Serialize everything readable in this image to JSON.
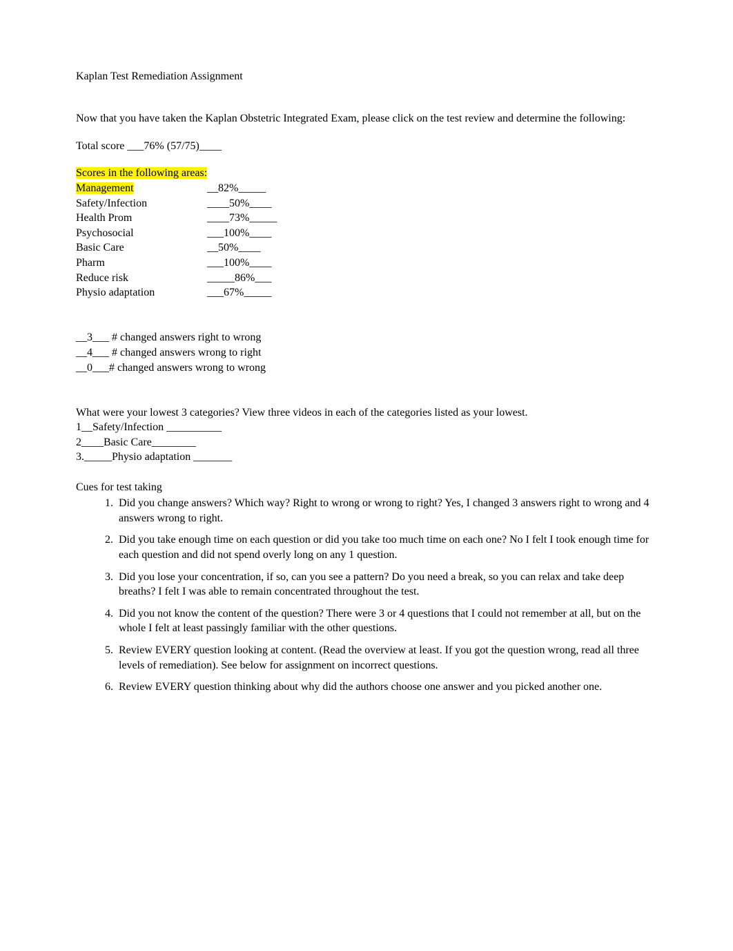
{
  "title": "Kaplan Test Remediation Assignment",
  "intro": "Now that you have taken the Kaplan Obstetric Integrated Exam, please click on the test review and determine the following:",
  "total_score_label": "Total score ___76% (57/75)____",
  "scores_heading": "Scores in the following areas:",
  "scores": [
    {
      "label": "Management",
      "value": "__82%_____",
      "label_highlight": true
    },
    {
      "label": "Safety/Infection",
      "value": "____50%____",
      "label_highlight": false
    },
    {
      "label": "Health Prom",
      "value": "____73%_____",
      "label_highlight": false
    },
    {
      "label": "Psychosocial",
      "value": "___100%____",
      "label_highlight": false
    },
    {
      "label": "Basic Care",
      "value": "__50%____",
      "label_highlight": false
    },
    {
      "label": "Pharm",
      "value": "___100%____",
      "label_highlight": false
    },
    {
      "label": "Reduce risk",
      "value": "_____86%___",
      "label_highlight": false
    },
    {
      "label": "Physio adaptation",
      "value": "___67%_____",
      "label_highlight": false
    }
  ],
  "changed": [
    "__3___ # changed answers right to wrong",
    "__4___ # changed answers wrong to right",
    "__0___# changed answers wrong to wrong"
  ],
  "lowest_q": "What were your lowest 3 categories?    View three videos in each of the categories listed as your lowest.",
  "lowest": [
    "1__Safety/Infection __________",
    "2____Basic Care________",
    "3._____Physio adaptation _______"
  ],
  "cues_heading": "Cues for test taking",
  "cues": [
    "Did you change answers? Which way? Right to wrong or wrong to right? Yes, I changed 3 answers right to wrong and 4 answers wrong to right.",
    "Did you take enough time on each question or did you take too much time on each one?     No I felt I took enough time for each question and did not spend overly long on any 1 question.",
    "Did you lose your concentration, if so, can you see a pattern? Do you need a break, so you can relax and take deep breaths?     I felt I was able to remain concentrated throughout the test.",
    "Did you not know the content of the question?     There were 3 or 4 questions that I could not remember at all, but on the whole I felt at least passingly familiar with the other questions.",
    "Review EVERY question looking at content. (Read the overview at least. If you got the question wrong, read all three levels of remediation). See below for assignment on incorrect questions.",
    "Review EVERY question thinking about why did the authors choose one answer and you picked another one."
  ]
}
